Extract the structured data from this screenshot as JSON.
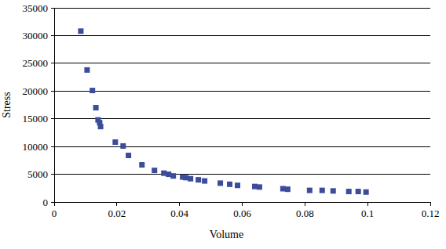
{
  "chart_data": {
    "type": "scatter",
    "x_label": "Volume",
    "y_label": "Stress",
    "x": [
      0.0085,
      0.0105,
      0.0122,
      0.0133,
      0.014,
      0.0145,
      0.0148,
      0.0195,
      0.022,
      0.0237,
      0.028,
      0.032,
      0.035,
      0.0365,
      0.038,
      0.041,
      0.042,
      0.0435,
      0.046,
      0.048,
      0.053,
      0.056,
      0.0585,
      0.064,
      0.0655,
      0.073,
      0.0745,
      0.0815,
      0.0855,
      0.089,
      0.094,
      0.097,
      0.0995
    ],
    "values": [
      30800,
      23800,
      20100,
      17000,
      14800,
      14300,
      13600,
      10800,
      10100,
      8400,
      6700,
      5700,
      5200,
      5000,
      4700,
      4500,
      4400,
      4200,
      4000,
      3800,
      3400,
      3200,
      3000,
      2800,
      2700,
      2400,
      2300,
      2100,
      2100,
      2000,
      1900,
      1900,
      1800
    ],
    "color": "#3b4c9b",
    "marker": "square",
    "xlim": [
      0,
      0.12
    ],
    "xticks": [
      0,
      0.02,
      0.04,
      0.06,
      0.08,
      0.1,
      0.12
    ],
    "ylim": [
      0,
      35000
    ],
    "yticks": [
      0,
      5000,
      10000,
      15000,
      20000,
      25000,
      30000,
      35000
    ],
    "grid": true
  }
}
